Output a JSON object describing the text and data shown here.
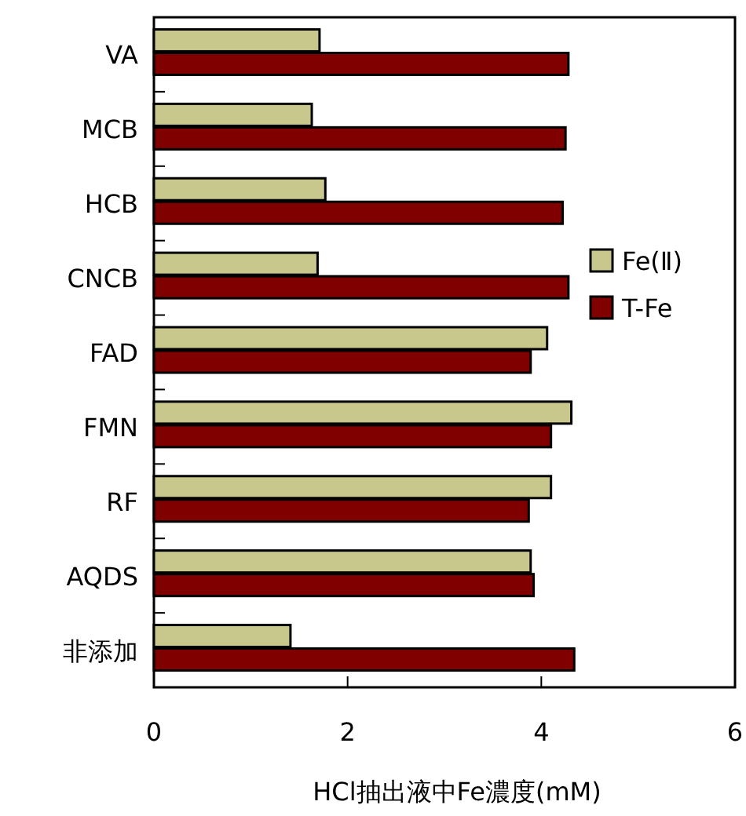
{
  "chart_data": {
    "type": "bar",
    "orientation": "horizontal",
    "xlabel": "HCl抽出液中Fe濃度(mM)",
    "categories": [
      "VA",
      "MCB",
      "HCB",
      "CNCB",
      "FAD",
      "FMN",
      "RF",
      "AQDS",
      "非添加"
    ],
    "series": [
      {
        "name": "Fe(Ⅱ)",
        "color": "#c8c88c",
        "values": [
          1.71,
          1.63,
          1.77,
          1.69,
          4.06,
          4.31,
          4.1,
          3.89,
          1.41
        ]
      },
      {
        "name": "T-Fe",
        "color": "#800000",
        "values": [
          4.28,
          4.25,
          4.22,
          4.28,
          3.89,
          4.1,
          3.87,
          3.92,
          4.34
        ]
      }
    ],
    "xlim": [
      0,
      6
    ],
    "xticks": [
      0,
      2,
      4,
      6
    ],
    "grid": false,
    "legend": "right"
  }
}
